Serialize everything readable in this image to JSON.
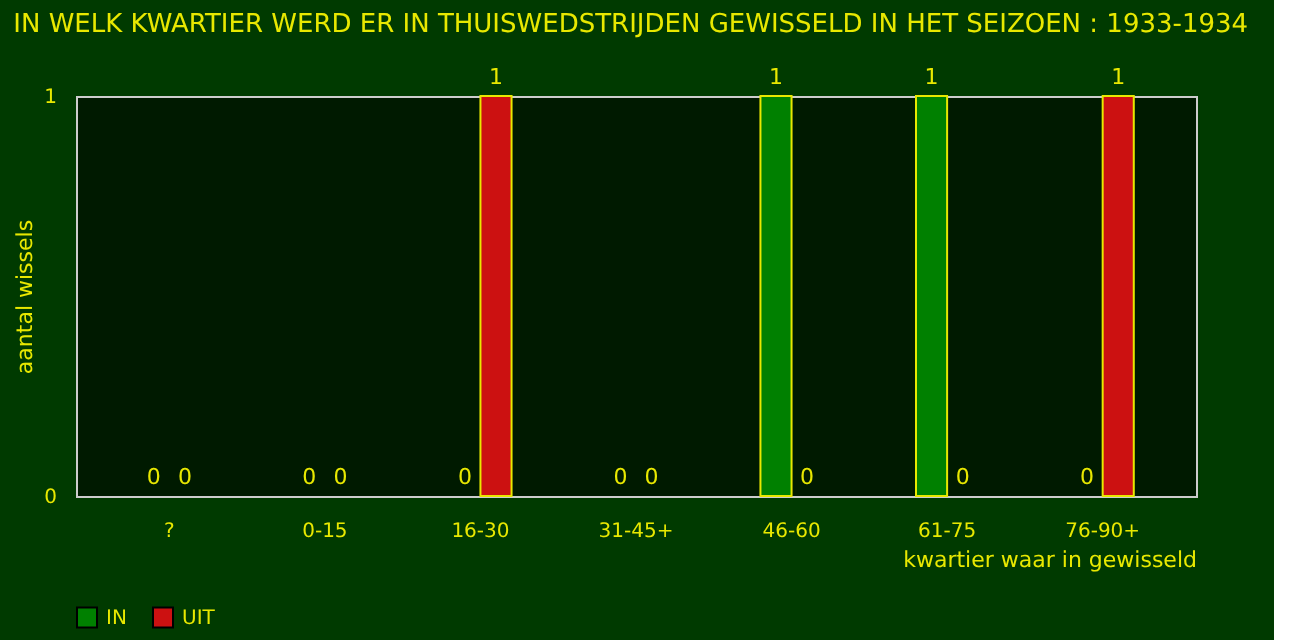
{
  "chart_data": {
    "type": "bar",
    "title": "IN WELK KWARTIER WERD ER IN THUISWEDSTRIJDEN GEWISSELD IN HET SEIZOEN : 1933-1934",
    "categories": [
      "?",
      "0-15",
      "16-30",
      "31-45+",
      "46-60",
      "61-75",
      "76-90+"
    ],
    "series": [
      {
        "name": "IN",
        "color": "#008000",
        "values": [
          0,
          0,
          0,
          0,
          1,
          1,
          0
        ]
      },
      {
        "name": "UIT",
        "color": "#cc1111",
        "values": [
          0,
          0,
          1,
          0,
          0,
          0,
          1
        ]
      }
    ],
    "xlabel": "kwartier waar in gewisseld",
    "ylabel": "aantal wissels",
    "ylim": [
      0,
      1
    ],
    "yticks": [
      0,
      1
    ],
    "data_labels": true,
    "legend": "bottom",
    "grid": false
  }
}
